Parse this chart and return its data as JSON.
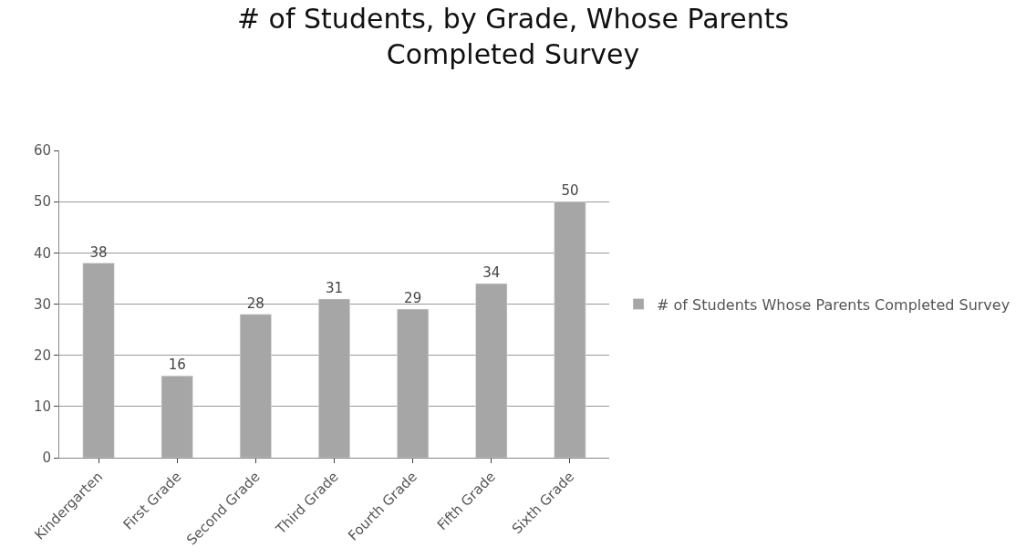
{
  "chart_data": {
    "type": "bar",
    "title": "# of Students, by Grade, Whose Parents Completed Survey",
    "categories": [
      "Kindergarten",
      "First Grade",
      "Second Grade",
      "Third Grade",
      "Fourth Grade",
      "Fifth Grade",
      "Sixth Grade"
    ],
    "series": [
      {
        "name": "# of Students Whose Parents Completed Survey",
        "color": "#a6a6a6",
        "values": [
          38,
          16,
          28,
          31,
          29,
          34,
          50
        ]
      }
    ],
    "ylim": [
      0,
      60
    ],
    "yticks": [
      0,
      10,
      20,
      30,
      40,
      50,
      60
    ],
    "grid": "y",
    "legend": "right",
    "data_labels": true
  }
}
